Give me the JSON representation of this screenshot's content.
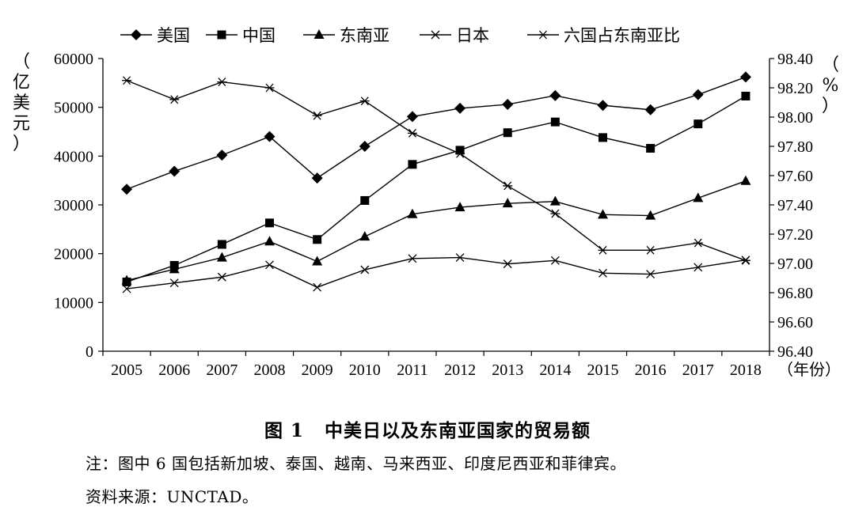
{
  "chart_data": {
    "type": "line",
    "categories": [
      "2005",
      "2006",
      "2007",
      "2008",
      "2009",
      "2010",
      "2011",
      "2012",
      "2013",
      "2014",
      "2015",
      "2016",
      "2017",
      "2018"
    ],
    "x_unit_label": "（年份）",
    "y_left": {
      "label": "（亿美元）",
      "ticks": [
        0,
        10000,
        20000,
        30000,
        40000,
        50000,
        60000
      ],
      "range": [
        0,
        60000
      ]
    },
    "y_right": {
      "label": "（%）",
      "ticks": [
        "96.40",
        "96.60",
        "96.80",
        "97.00",
        "97.20",
        "97.40",
        "97.60",
        "97.80",
        "98.00",
        "98.20",
        "98.40"
      ],
      "range": [
        96.4,
        98.4
      ]
    },
    "series": [
      {
        "name": "美国",
        "marker": "diamond",
        "axis": "left",
        "values": [
          33200,
          36900,
          40200,
          44000,
          35500,
          42000,
          48100,
          49800,
          50600,
          52400,
          50400,
          49500,
          52600,
          56200
        ]
      },
      {
        "name": "中国",
        "marker": "square",
        "axis": "left",
        "values": [
          14200,
          17600,
          21900,
          26300,
          22900,
          30900,
          38300,
          41200,
          44800,
          47000,
          43800,
          41600,
          46600,
          52300
        ]
      },
      {
        "name": "东南亚",
        "marker": "triangle",
        "axis": "left",
        "values": [
          14500,
          16800,
          19200,
          22500,
          18400,
          23500,
          28100,
          29500,
          30300,
          30700,
          28000,
          27800,
          31400,
          34900
        ]
      },
      {
        "name": "日本",
        "marker": "x",
        "axis": "left",
        "values": [
          12800,
          14000,
          15200,
          17700,
          13100,
          16700,
          19000,
          19200,
          17900,
          18600,
          16000,
          15800,
          17200,
          18700
        ]
      },
      {
        "name": "六国占东南亚比",
        "marker": "star",
        "axis": "right",
        "values": [
          98.25,
          98.12,
          98.24,
          98.2,
          98.01,
          98.11,
          97.89,
          97.75,
          97.53,
          97.34,
          97.09,
          97.09,
          97.14,
          97.02
        ]
      }
    ],
    "grid": false,
    "legend_position": "top"
  },
  "caption": {
    "number": "图 1",
    "text": "中美日以及东南亚国家的贸易额"
  },
  "note": "注：图中 6 国包括新加坡、泰国、越南、马来西亚、印度尼西亚和菲律宾。",
  "source": "资料来源：UNCTAD。"
}
